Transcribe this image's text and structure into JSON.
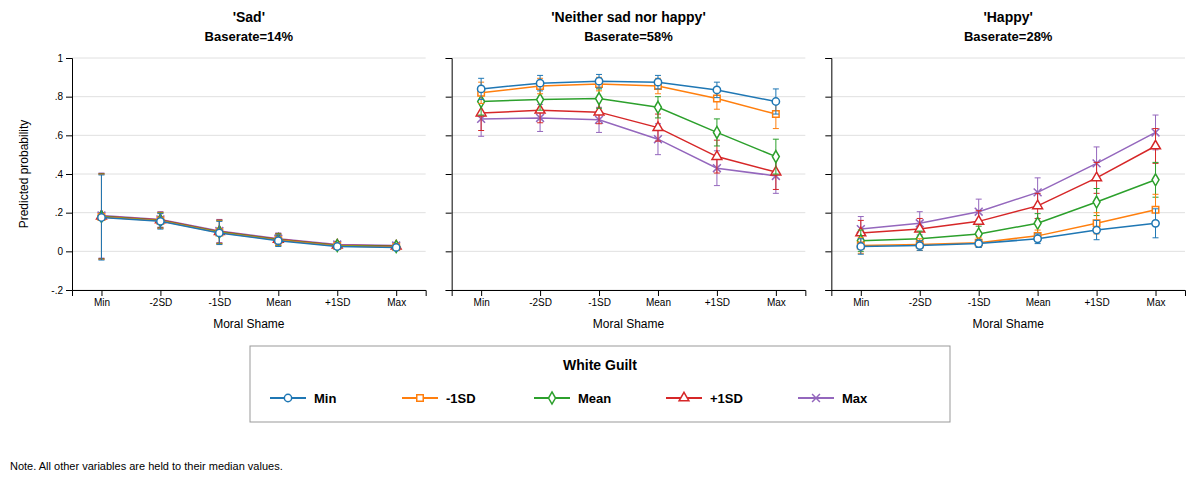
{
  "chart_data": [
    {
      "type": "line",
      "title": "'Sad'",
      "subtitle": "Baserate=14%",
      "xlabel": "Moral Shame",
      "ylabel": "Predicted probability",
      "legend_title": "White Guilt",
      "annotations": [
        "Note. All other variables are held to their median values."
      ],
      "categories": [
        "Min",
        "-2SD",
        "-1SD",
        "Mean",
        "+1SD",
        "Max"
      ],
      "ylim": [
        -0.2,
        1.0
      ],
      "yticks": [
        {
          "value": -0.2,
          "label": "-.2"
        },
        0,
        {
          "value": 0.2,
          "label": ".2"
        },
        {
          "value": 0.4,
          "label": ".4"
        },
        {
          "value": 0.6,
          "label": ".6"
        },
        {
          "value": 0.8,
          "label": ".8"
        },
        1
      ],
      "grid": true,
      "series": [
        {
          "name": "Min",
          "marker": "circle",
          "values": [
            0.175,
            0.155,
            0.095,
            0.055,
            0.025,
            0.02
          ],
          "errors": [
            0.22,
            0.04,
            0.06,
            0.03,
            0.015,
            0.012
          ]
        },
        {
          "name": "-1SD",
          "marker": "square",
          "values": [
            0.178,
            0.158,
            0.098,
            0.058,
            0.028,
            0.022
          ],
          "errors": [
            0.22,
            0.04,
            0.06,
            0.03,
            0.015,
            0.012
          ]
        },
        {
          "name": "Mean",
          "marker": "diamond",
          "values": [
            0.18,
            0.16,
            0.1,
            0.06,
            0.03,
            0.025
          ],
          "errors": [
            0.22,
            0.04,
            0.06,
            0.03,
            0.015,
            0.012
          ]
        },
        {
          "name": "+1SD",
          "marker": "triangle",
          "values": [
            0.182,
            0.162,
            0.102,
            0.062,
            0.032,
            0.027
          ],
          "errors": [
            0.22,
            0.04,
            0.06,
            0.03,
            0.015,
            0.012
          ]
        },
        {
          "name": "Max",
          "marker": "x",
          "values": [
            0.185,
            0.165,
            0.105,
            0.065,
            0.035,
            0.03
          ],
          "errors": [
            0.22,
            0.04,
            0.06,
            0.03,
            0.015,
            0.012
          ]
        }
      ]
    },
    {
      "type": "line",
      "title": "'Neither sad nor happy'",
      "subtitle": "Baserate=58%",
      "xlabel": "Moral Shame",
      "categories": [
        "Min",
        "-2SD",
        "-1SD",
        "Mean",
        "+1SD",
        "Max"
      ],
      "ylim": [
        -0.2,
        1.0
      ],
      "yticks": [
        {
          "value": -0.2,
          "label": "-.2"
        },
        0,
        {
          "value": 0.2,
          "label": ".2"
        },
        {
          "value": 0.4,
          "label": ".4"
        },
        {
          "value": 0.6,
          "label": ".6"
        },
        {
          "value": 0.8,
          "label": ".8"
        },
        1
      ],
      "grid": true,
      "tick_labels": "x",
      "series": [
        {
          "name": "Min",
          "marker": "circle",
          "values": [
            0.84,
            0.87,
            0.88,
            0.875,
            0.835,
            0.775
          ],
          "errors": [
            0.055,
            0.04,
            0.035,
            0.035,
            0.04,
            0.065
          ]
        },
        {
          "name": "-1SD",
          "marker": "square",
          "values": [
            0.82,
            0.855,
            0.865,
            0.855,
            0.79,
            0.71
          ],
          "errors": [
            0.055,
            0.04,
            0.035,
            0.04,
            0.055,
            0.075
          ]
        },
        {
          "name": "Mean",
          "marker": "diamond",
          "values": [
            0.775,
            0.785,
            0.79,
            0.745,
            0.615,
            0.49
          ],
          "errors": [
            0.07,
            0.055,
            0.05,
            0.055,
            0.07,
            0.09
          ]
        },
        {
          "name": "+1SD",
          "marker": "triangle",
          "values": [
            0.715,
            0.73,
            0.72,
            0.64,
            0.49,
            0.41
          ],
          "errors": [
            0.09,
            0.065,
            0.06,
            0.07,
            0.085,
            0.09
          ]
        },
        {
          "name": "Max",
          "marker": "x",
          "values": [
            0.685,
            0.69,
            0.68,
            0.58,
            0.43,
            0.39
          ],
          "errors": [
            0.09,
            0.07,
            0.065,
            0.08,
            0.09,
            0.09
          ]
        }
      ]
    },
    {
      "type": "line",
      "title": "'Happy'",
      "subtitle": "Baserate=28%",
      "xlabel": "Moral Shame",
      "categories": [
        "Min",
        "-2SD",
        "-1SD",
        "Mean",
        "+1SD",
        "Max"
      ],
      "ylim": [
        -0.2,
        1.0
      ],
      "yticks": [
        {
          "value": -0.2,
          "label": "-.2"
        },
        0,
        {
          "value": 0.2,
          "label": ".2"
        },
        {
          "value": 0.4,
          "label": ".4"
        },
        {
          "value": 0.6,
          "label": ".6"
        },
        {
          "value": 0.8,
          "label": ".8"
        },
        1
      ],
      "grid": true,
      "tick_labels": "x",
      "series": [
        {
          "name": "Min",
          "marker": "circle",
          "values": [
            0.025,
            0.03,
            0.04,
            0.065,
            0.11,
            0.145
          ],
          "errors": [
            0.04,
            0.025,
            0.02,
            0.025,
            0.05,
            0.075
          ]
        },
        {
          "name": "-1SD",
          "marker": "square",
          "values": [
            0.03,
            0.035,
            0.045,
            0.08,
            0.145,
            0.215
          ],
          "errors": [
            0.04,
            0.03,
            0.025,
            0.03,
            0.055,
            0.08
          ]
        },
        {
          "name": "Mean",
          "marker": "diamond",
          "values": [
            0.055,
            0.065,
            0.09,
            0.145,
            0.255,
            0.37
          ],
          "errors": [
            0.055,
            0.04,
            0.04,
            0.05,
            0.07,
            0.09
          ]
        },
        {
          "name": "+1SD",
          "marker": "triangle",
          "values": [
            0.095,
            0.115,
            0.155,
            0.235,
            0.38,
            0.545
          ],
          "errors": [
            0.065,
            0.055,
            0.055,
            0.065,
            0.08,
            0.09
          ]
        },
        {
          "name": "Max",
          "marker": "x",
          "values": [
            0.115,
            0.145,
            0.205,
            0.305,
            0.455,
            0.615
          ],
          "errors": [
            0.065,
            0.06,
            0.065,
            0.075,
            0.085,
            0.09
          ]
        }
      ]
    }
  ]
}
